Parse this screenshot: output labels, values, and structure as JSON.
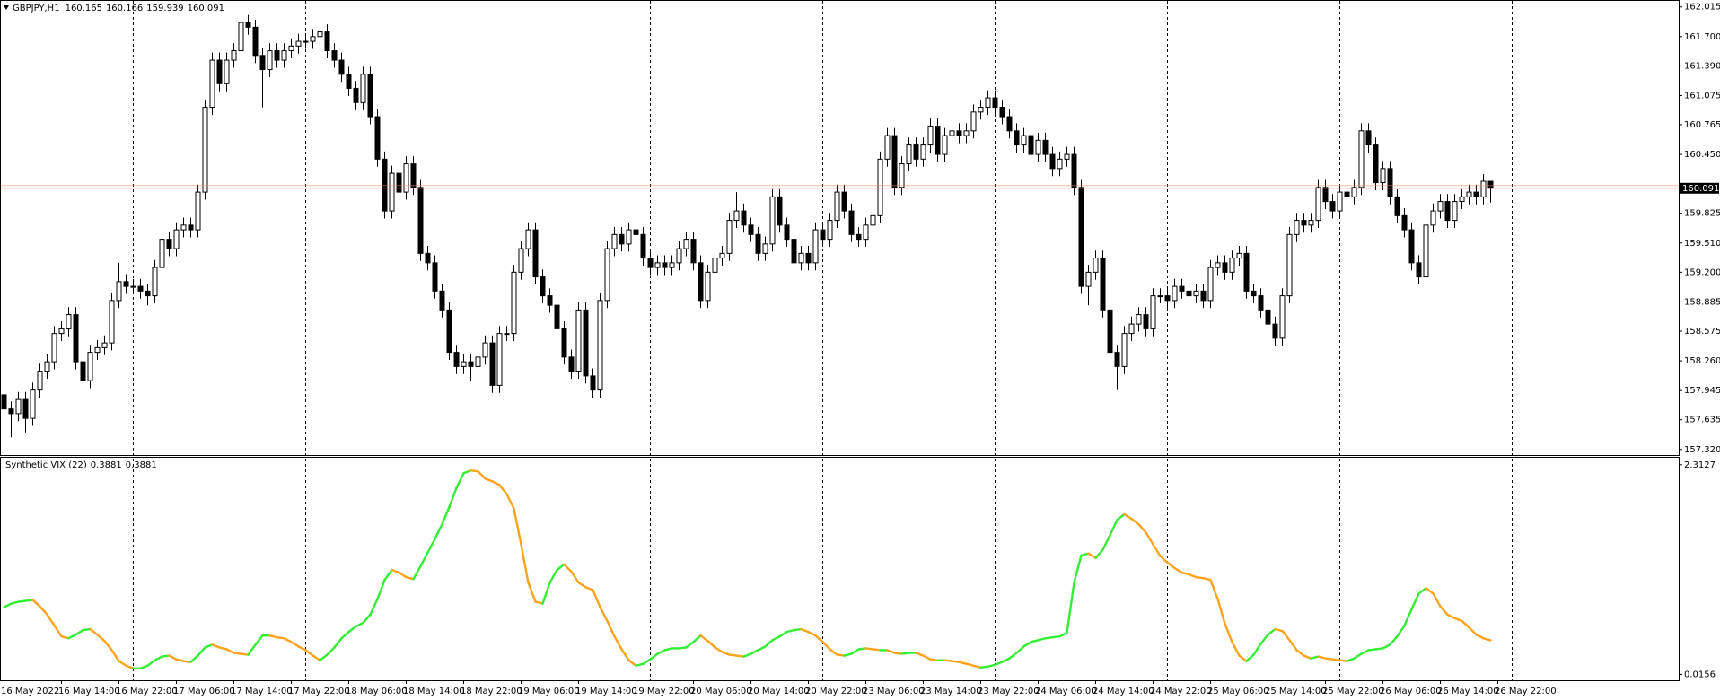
{
  "chart_data": [
    {
      "type": "candlestick",
      "title": "GBPJPY,H1",
      "x_labels": [
        "16 May 2022",
        "16 May 14:00",
        "16 May 22:00",
        "17 May 06:00",
        "17 May 14:00",
        "17 May 22:00",
        "18 May 06:00",
        "18 May 14:00",
        "18 May 22:00",
        "19 May 06:00",
        "19 May 14:00",
        "19 May 22:00",
        "20 May 06:00",
        "20 May 14:00",
        "20 May 22:00",
        "23 May 06:00",
        "23 May 14:00",
        "23 May 22:00",
        "24 May 06:00",
        "24 May 14:00",
        "24 May 22:00",
        "25 May 06:00",
        "25 May 14:00",
        "25 May 22:00",
        "26 May 06:00",
        "26 May 14:00",
        "26 May 22:00"
      ],
      "open": [
        157.9,
        157.75,
        157.7,
        157.85,
        157.65,
        157.95,
        158.15,
        158.25,
        158.55,
        158.6,
        158.75,
        158.25,
        158.05,
        158.35,
        158.4,
        158.45,
        158.9,
        159.1,
        159.05,
        159.05,
        159.0,
        158.95,
        159.25,
        159.55,
        159.45,
        159.65,
        159.7,
        159.65,
        160.05,
        160.95,
        161.45,
        161.2,
        161.45,
        161.55,
        161.85,
        161.8,
        161.5,
        161.35,
        161.55,
        161.45,
        161.55,
        161.6,
        161.65,
        161.65,
        161.7,
        161.75,
        161.55,
        161.45,
        161.3,
        161.15,
        161.0,
        161.3,
        160.85,
        160.4,
        159.85,
        160.25,
        160.05,
        160.35,
        160.1,
        159.4,
        159.3,
        159.0,
        158.8,
        158.35,
        158.2,
        158.25,
        158.2,
        158.3,
        158.45,
        158.0,
        158.55,
        158.55,
        159.2,
        159.45,
        159.65,
        159.15,
        158.95,
        158.85,
        158.6,
        158.3,
        158.15,
        158.8,
        158.1,
        157.95,
        158.9,
        159.45,
        159.6,
        159.5,
        159.65,
        159.6,
        159.35,
        159.25,
        159.3,
        159.25,
        159.3,
        159.45,
        159.55,
        159.3,
        158.9,
        159.2,
        159.35,
        159.4,
        159.75,
        159.85,
        159.7,
        159.6,
        159.4,
        159.5,
        160.0,
        159.7,
        159.55,
        159.3,
        159.4,
        159.3,
        159.65,
        159.55,
        159.75,
        160.05,
        159.85,
        159.6,
        159.55,
        159.7,
        159.8,
        160.4,
        160.65,
        160.1,
        160.35,
        160.55,
        160.4,
        160.55,
        160.75,
        160.45,
        160.65,
        160.7,
        160.65,
        160.7,
        160.9,
        160.95,
        161.05,
        160.95,
        160.85,
        160.7,
        160.55,
        160.65,
        160.45,
        160.6,
        160.45,
        160.3,
        160.4,
        160.45,
        160.1,
        159.05,
        159.2,
        159.35,
        158.8,
        158.35,
        158.2,
        158.55,
        158.65,
        158.75,
        158.6,
        158.95,
        158.95,
        158.9,
        159.05,
        159.0,
        158.95,
        159.0,
        158.9,
        159.25,
        159.3,
        159.2,
        159.35,
        159.4,
        159.0,
        158.95,
        158.8,
        158.65,
        158.5,
        158.95,
        159.6,
        159.75,
        159.7,
        159.75,
        160.1,
        159.95,
        159.85,
        160.05,
        160.0,
        160.1,
        160.7,
        160.55,
        160.15,
        160.3,
        160.0,
        159.8,
        159.65,
        159.3,
        159.15,
        159.7,
        159.85,
        159.95,
        159.75,
        159.95,
        160.0,
        160.05,
        160.0,
        160.165
      ],
      "high": [
        157.98,
        157.83,
        157.93,
        157.93,
        158.03,
        158.23,
        158.33,
        158.63,
        158.68,
        158.83,
        158.83,
        158.33,
        158.43,
        158.48,
        158.53,
        158.98,
        159.3,
        159.18,
        159.13,
        159.13,
        159.08,
        159.33,
        159.63,
        159.63,
        159.73,
        159.78,
        159.78,
        160.13,
        161.03,
        161.53,
        161.53,
        161.53,
        161.63,
        161.93,
        161.93,
        161.88,
        161.58,
        161.63,
        161.63,
        161.63,
        161.68,
        161.73,
        161.73,
        161.78,
        161.83,
        161.83,
        161.63,
        161.53,
        161.38,
        161.23,
        161.38,
        161.38,
        160.93,
        160.48,
        160.33,
        160.33,
        160.43,
        160.43,
        160.18,
        159.48,
        159.38,
        159.08,
        158.88,
        158.43,
        158.33,
        158.33,
        158.38,
        158.53,
        158.53,
        158.63,
        158.63,
        159.28,
        159.53,
        159.73,
        159.73,
        159.23,
        159.03,
        158.93,
        158.68,
        158.38,
        158.88,
        158.88,
        158.18,
        158.98,
        159.53,
        159.68,
        159.68,
        159.73,
        159.73,
        159.68,
        159.43,
        159.38,
        159.38,
        159.38,
        159.53,
        159.63,
        159.63,
        159.38,
        159.28,
        159.43,
        159.48,
        159.83,
        160.05,
        159.93,
        159.78,
        159.68,
        159.58,
        160.08,
        160.08,
        159.78,
        159.63,
        159.48,
        159.48,
        159.73,
        159.73,
        159.83,
        160.13,
        160.13,
        159.93,
        159.68,
        159.78,
        159.88,
        160.48,
        160.73,
        160.73,
        160.43,
        160.63,
        160.63,
        160.63,
        160.83,
        160.83,
        160.73,
        160.78,
        160.78,
        160.78,
        160.98,
        161.03,
        161.13,
        161.13,
        161.03,
        160.93,
        160.78,
        160.73,
        160.73,
        160.68,
        160.68,
        160.53,
        160.48,
        160.53,
        160.53,
        160.18,
        159.28,
        159.43,
        159.43,
        158.88,
        158.43,
        158.63,
        158.73,
        158.83,
        158.83,
        159.03,
        159.03,
        159.03,
        159.13,
        159.13,
        159.08,
        159.08,
        159.08,
        159.33,
        159.38,
        159.38,
        159.43,
        159.48,
        159.48,
        159.08,
        159.03,
        158.88,
        158.73,
        159.03,
        159.68,
        159.83,
        159.83,
        159.83,
        160.18,
        160.18,
        160.03,
        160.13,
        160.13,
        160.18,
        160.78,
        160.78,
        160.63,
        160.38,
        160.38,
        160.08,
        159.88,
        159.73,
        159.38,
        159.78,
        159.93,
        160.03,
        160.03,
        160.03,
        160.08,
        160.13,
        160.13,
        160.24,
        160.166
      ],
      "low": [
        157.67,
        157.45,
        157.62,
        157.5,
        157.57,
        157.87,
        158.07,
        158.17,
        158.47,
        158.52,
        158.17,
        157.95,
        157.97,
        158.27,
        158.32,
        158.37,
        158.82,
        158.97,
        158.97,
        158.92,
        158.85,
        158.87,
        159.17,
        159.37,
        159.37,
        159.57,
        159.57,
        159.57,
        159.97,
        160.87,
        161.12,
        161.12,
        161.37,
        161.47,
        161.72,
        161.42,
        160.95,
        161.27,
        161.37,
        161.37,
        161.47,
        161.52,
        161.57,
        161.57,
        161.62,
        161.47,
        161.37,
        161.22,
        161.07,
        160.92,
        160.92,
        160.77,
        160.32,
        159.77,
        159.77,
        159.97,
        159.97,
        160.02,
        159.32,
        159.22,
        158.92,
        158.72,
        158.27,
        158.12,
        158.12,
        158.05,
        158.12,
        158.22,
        157.92,
        157.92,
        158.47,
        158.47,
        159.12,
        159.37,
        159.07,
        158.87,
        158.77,
        158.52,
        158.22,
        158.07,
        158.07,
        158.02,
        157.87,
        157.87,
        158.82,
        159.37,
        159.42,
        159.42,
        159.52,
        159.27,
        159.17,
        159.17,
        159.17,
        159.17,
        159.22,
        159.37,
        159.22,
        158.82,
        158.82,
        159.12,
        159.27,
        159.32,
        159.67,
        159.62,
        159.52,
        159.32,
        159.32,
        159.42,
        159.62,
        159.47,
        159.22,
        159.22,
        159.22,
        159.22,
        159.47,
        159.47,
        159.67,
        159.77,
        159.52,
        159.47,
        159.47,
        159.62,
        159.72,
        160.32,
        160.02,
        160.02,
        160.27,
        160.32,
        160.32,
        160.47,
        160.37,
        160.37,
        160.57,
        160.57,
        160.57,
        160.62,
        160.82,
        160.87,
        160.87,
        160.77,
        160.62,
        160.47,
        160.47,
        160.37,
        160.37,
        160.37,
        160.22,
        160.22,
        160.32,
        160.02,
        158.97,
        158.85,
        159.12,
        158.72,
        158.27,
        157.95,
        158.12,
        158.47,
        158.57,
        158.52,
        158.52,
        158.87,
        158.82,
        158.82,
        158.92,
        158.87,
        158.87,
        158.82,
        158.82,
        159.17,
        159.12,
        159.12,
        159.27,
        158.92,
        158.87,
        158.72,
        158.57,
        158.42,
        158.42,
        158.87,
        159.52,
        159.62,
        159.62,
        159.67,
        159.87,
        159.77,
        159.77,
        159.92,
        159.92,
        160.02,
        160.47,
        160.07,
        160.07,
        159.92,
        159.72,
        159.57,
        159.22,
        159.07,
        159.07,
        159.62,
        159.77,
        159.67,
        159.67,
        159.87,
        159.92,
        159.92,
        159.92,
        159.939
      ],
      "close": [
        157.75,
        157.7,
        157.85,
        157.65,
        157.95,
        158.15,
        158.25,
        158.55,
        158.6,
        158.75,
        158.25,
        158.05,
        158.35,
        158.4,
        158.45,
        158.9,
        159.1,
        159.05,
        159.05,
        159.0,
        158.95,
        159.25,
        159.55,
        159.45,
        159.65,
        159.7,
        159.65,
        160.05,
        160.95,
        161.45,
        161.2,
        161.45,
        161.55,
        161.85,
        161.8,
        161.5,
        161.35,
        161.55,
        161.45,
        161.55,
        161.6,
        161.65,
        161.65,
        161.7,
        161.75,
        161.55,
        161.45,
        161.3,
        161.15,
        161.0,
        161.3,
        160.85,
        160.4,
        159.85,
        160.25,
        160.05,
        160.35,
        160.1,
        159.4,
        159.3,
        159.0,
        158.8,
        158.35,
        158.2,
        158.25,
        158.2,
        158.3,
        158.45,
        158.0,
        158.55,
        158.55,
        159.2,
        159.45,
        159.65,
        159.15,
        158.95,
        158.85,
        158.6,
        158.3,
        158.15,
        158.8,
        158.1,
        157.95,
        158.9,
        159.45,
        159.6,
        159.5,
        159.65,
        159.6,
        159.35,
        159.25,
        159.3,
        159.25,
        159.3,
        159.45,
        159.55,
        159.3,
        158.9,
        159.2,
        159.35,
        159.4,
        159.75,
        159.85,
        159.7,
        159.6,
        159.4,
        159.5,
        160.0,
        159.7,
        159.55,
        159.3,
        159.4,
        159.3,
        159.65,
        159.55,
        159.75,
        160.05,
        159.85,
        159.6,
        159.55,
        159.7,
        159.8,
        160.4,
        160.65,
        160.1,
        160.35,
        160.55,
        160.4,
        160.55,
        160.75,
        160.45,
        160.65,
        160.7,
        160.65,
        160.7,
        160.9,
        160.95,
        161.05,
        160.95,
        160.85,
        160.7,
        160.55,
        160.65,
        160.45,
        160.6,
        160.45,
        160.3,
        160.4,
        160.45,
        160.1,
        159.05,
        159.2,
        159.35,
        158.8,
        158.35,
        158.2,
        158.55,
        158.65,
        158.75,
        158.6,
        158.95,
        158.95,
        158.9,
        159.05,
        159.0,
        158.95,
        159.0,
        158.9,
        159.25,
        159.3,
        159.2,
        159.35,
        159.4,
        159.0,
        158.95,
        158.8,
        158.65,
        158.5,
        158.95,
        159.6,
        159.75,
        159.7,
        159.75,
        160.1,
        159.95,
        159.85,
        160.05,
        160.0,
        160.1,
        160.7,
        160.55,
        160.15,
        160.3,
        160.0,
        159.8,
        159.65,
        159.3,
        159.15,
        159.7,
        159.85,
        159.95,
        159.75,
        159.95,
        160.0,
        160.05,
        160.0,
        160.165,
        160.091
      ],
      "up_color": "#ffffff",
      "down_color": "#000000",
      "wick_color": "#000000",
      "last_price": 160.091,
      "price_line_color": "#e0906a",
      "ylim": [
        157.28,
        162.06
      ],
      "yticks": [
        162.015,
        {
          "value": 161.7,
          "label": "161.700"
        },
        {
          "value": 161.39,
          "label": "161.390"
        },
        161.075,
        160.765,
        {
          "value": 160.45,
          "label": "160.450"
        },
        159.825,
        {
          "value": 159.51,
          "label": "159.510"
        },
        {
          "value": 159.2,
          "label": "159.200"
        },
        158.885,
        158.575,
        {
          "value": 158.26,
          "label": "158.260"
        },
        157.945,
        157.635,
        {
          "value": 157.32,
          "label": "157.320"
        }
      ]
    },
    {
      "type": "line",
      "title": "Synthetic VIX (22)",
      "values": [
        0.75,
        0.79,
        0.81,
        0.82,
        0.83,
        0.76,
        0.67,
        0.55,
        0.43,
        0.41,
        0.45,
        0.5,
        0.51,
        0.45,
        0.38,
        0.28,
        0.16,
        0.11,
        0.08,
        0.08,
        0.11,
        0.17,
        0.21,
        0.22,
        0.18,
        0.16,
        0.15,
        0.22,
        0.31,
        0.34,
        0.31,
        0.29,
        0.25,
        0.24,
        0.23,
        0.34,
        0.44,
        0.44,
        0.42,
        0.41,
        0.37,
        0.32,
        0.28,
        0.22,
        0.17,
        0.23,
        0.31,
        0.41,
        0.48,
        0.54,
        0.58,
        0.67,
        0.84,
        1.05,
        1.16,
        1.13,
        1.08,
        1.06,
        1.2,
        1.35,
        1.5,
        1.66,
        1.85,
        2.06,
        2.22,
        2.25,
        2.24,
        2.16,
        2.13,
        2.09,
        1.99,
        1.83,
        1.44,
        1.02,
        0.81,
        0.79,
        1.02,
        1.16,
        1.22,
        1.14,
        1.02,
        0.97,
        0.94,
        0.75,
        0.6,
        0.43,
        0.29,
        0.17,
        0.11,
        0.13,
        0.18,
        0.24,
        0.28,
        0.3,
        0.3,
        0.31,
        0.37,
        0.44,
        0.38,
        0.31,
        0.26,
        0.23,
        0.22,
        0.21,
        0.24,
        0.28,
        0.32,
        0.39,
        0.43,
        0.48,
        0.5,
        0.51,
        0.48,
        0.44,
        0.37,
        0.29,
        0.23,
        0.22,
        0.24,
        0.29,
        0.3,
        0.29,
        0.28,
        0.28,
        0.25,
        0.24,
        0.25,
        0.25,
        0.22,
        0.18,
        0.17,
        0.17,
        0.16,
        0.15,
        0.13,
        0.11,
        0.09,
        0.1,
        0.12,
        0.15,
        0.19,
        0.25,
        0.32,
        0.37,
        0.39,
        0.41,
        0.42,
        0.43,
        0.47,
        1.02,
        1.32,
        1.34,
        1.29,
        1.38,
        1.54,
        1.71,
        1.77,
        1.72,
        1.66,
        1.57,
        1.44,
        1.31,
        1.24,
        1.18,
        1.13,
        1.11,
        1.08,
        1.07,
        1.05,
        0.84,
        0.57,
        0.37,
        0.22,
        0.16,
        0.23,
        0.35,
        0.45,
        0.51,
        0.49,
        0.39,
        0.28,
        0.22,
        0.19,
        0.21,
        0.19,
        0.18,
        0.17,
        0.16,
        0.19,
        0.24,
        0.28,
        0.29,
        0.3,
        0.34,
        0.43,
        0.55,
        0.73,
        0.9,
        0.96,
        0.9,
        0.76,
        0.67,
        0.63,
        0.6,
        0.53,
        0.45,
        0.41,
        0.3881
      ],
      "up_color": "#33ee33",
      "down_color": "#ffa31a",
      "ylim": [
        -0.04,
        2.37
      ],
      "yticks": [
        2.3127,
        0.0156
      ]
    }
  ]
}
